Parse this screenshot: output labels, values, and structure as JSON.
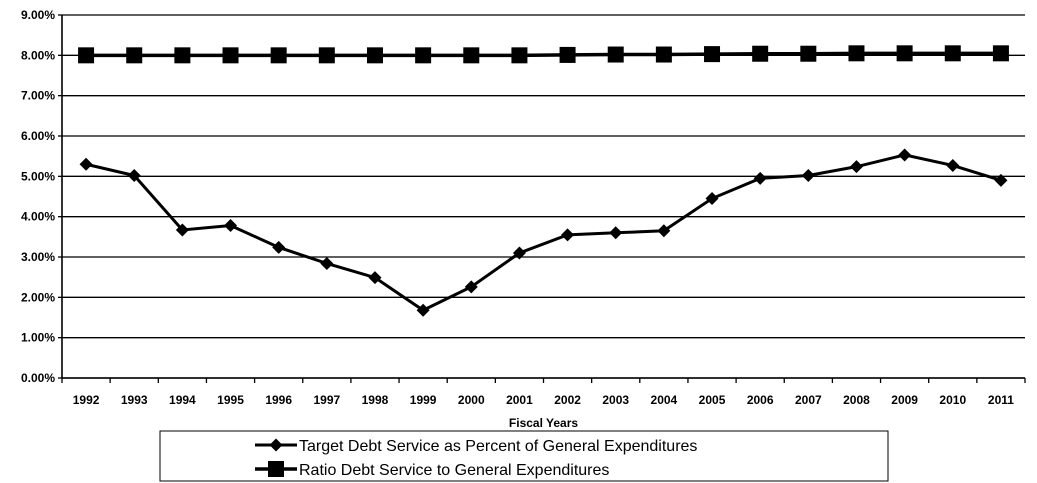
{
  "chart_data": {
    "type": "line",
    "title": "",
    "xlabel": "Fiscal Years",
    "ylabel": "",
    "categories": [
      "1992",
      "1993",
      "1994",
      "1995",
      "1996",
      "1997",
      "1998",
      "1999",
      "2000",
      "2001",
      "2002",
      "2003",
      "2004",
      "2005",
      "2006",
      "2007",
      "2008",
      "2009",
      "2010",
      "2011"
    ],
    "yticks": [
      "0.00%",
      "1.00%",
      "2.00%",
      "3.00%",
      "4.00%",
      "5.00%",
      "6.00%",
      "7.00%",
      "8.00%",
      "9.00%"
    ],
    "ylim": [
      0,
      9
    ],
    "grid": true,
    "legend_position": "bottom",
    "series": [
      {
        "name": "Target Debt Service as Percent of General Expenditures",
        "marker": "diamond",
        "color": "#000000",
        "values": [
          5.3,
          5.02,
          3.67,
          3.78,
          3.24,
          2.84,
          2.49,
          1.68,
          2.26,
          3.1,
          3.55,
          3.6,
          3.65,
          4.45,
          4.95,
          5.02,
          5.24,
          5.53,
          5.27,
          4.9
        ]
      },
      {
        "name": "Ratio Debt Service to General Expenditures",
        "marker": "square",
        "color": "#000000",
        "values": [
          8.0,
          8.0,
          8.0,
          8.0,
          8.0,
          8.0,
          8.0,
          8.0,
          8.0,
          8.0,
          8.01,
          8.02,
          8.02,
          8.03,
          8.04,
          8.04,
          8.05,
          8.05,
          8.05,
          8.05
        ]
      }
    ]
  }
}
